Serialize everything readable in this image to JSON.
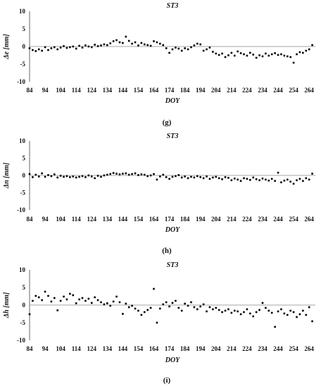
{
  "chart_data": [
    {
      "type": "scatter",
      "panel_tag": "(g)",
      "title": "ST3",
      "xlabel": "DOY",
      "ylabel": "Δe [mm]",
      "xlim": [
        84,
        268
      ],
      "ylim": [
        -10,
        10
      ],
      "xticks": [
        "84",
        "94",
        "104",
        "114",
        "124",
        "134",
        "144",
        "154",
        "164",
        "174",
        "184",
        "194",
        "204",
        "214",
        "224",
        "234",
        "244",
        "254",
        "264"
      ],
      "yticks": [
        "10",
        "5",
        "0",
        "-5",
        "-10"
      ],
      "grid": false,
      "marker_color": "#000000",
      "series": [
        {
          "x": [
            84,
            86,
            88,
            90,
            92,
            94,
            96,
            98,
            100,
            102,
            104,
            106,
            108,
            110,
            112,
            114,
            116,
            118,
            120,
            122,
            124,
            126,
            128,
            130,
            132,
            134,
            136,
            138,
            140,
            142,
            144,
            146,
            148,
            150,
            152,
            154,
            156,
            158,
            160,
            162,
            164,
            166,
            168,
            170,
            172,
            174,
            176,
            178,
            180,
            182,
            184,
            186,
            188,
            190,
            192,
            194,
            196,
            198,
            200,
            202,
            204,
            206,
            208,
            210,
            212,
            214,
            216,
            218,
            220,
            222,
            224,
            226,
            228,
            230,
            232,
            234,
            236,
            238,
            240,
            242,
            244,
            246,
            248,
            250,
            252,
            254,
            256,
            258,
            260,
            262,
            264,
            266
          ],
          "y": [
            -0.5,
            -1.0,
            -1.3,
            -0.8,
            -1.2,
            -0.2,
            -1.0,
            -0.5,
            -0.2,
            -0.8,
            -0.3,
            0.1,
            -0.4,
            -0.2,
            0.0,
            -0.6,
            0.2,
            -0.3,
            0.3,
            0.0,
            -0.2,
            0.5,
            0.1,
            0.3,
            0.6,
            0.4,
            0.9,
            1.5,
            1.8,
            1.2,
            1.0,
            2.8,
            1.6,
            0.8,
            1.2,
            0.3,
            1.0,
            0.6,
            0.4,
            0.2,
            1.5,
            1.2,
            0.8,
            0.4,
            -0.5,
            -1.8,
            -0.8,
            -0.3,
            -0.6,
            -1.2,
            -0.5,
            -0.8,
            -0.2,
            0.3,
            0.8,
            0.6,
            -1.2,
            -0.8,
            -0.3,
            -1.5,
            -2.0,
            -2.4,
            -2.0,
            -3.0,
            -2.5,
            -1.8,
            -2.6,
            -1.4,
            -1.9,
            -2.2,
            -2.6,
            -1.8,
            -2.3,
            -3.2,
            -2.5,
            -2.8,
            -2.0,
            -2.6,
            -2.2,
            -1.9,
            -2.4,
            -2.2,
            -2.6,
            -2.8,
            -3.0,
            -4.6,
            -2.2,
            -1.6,
            -1.8,
            -1.2,
            -0.8,
            0.4
          ]
        }
      ]
    },
    {
      "type": "scatter",
      "panel_tag": "(h)",
      "title": "ST3",
      "xlabel": "DOY",
      "ylabel": "Δn [mm]",
      "xlim": [
        84,
        268
      ],
      "ylim": [
        -10,
        10
      ],
      "xticks": [
        "84",
        "94",
        "104",
        "114",
        "124",
        "134",
        "144",
        "154",
        "164",
        "174",
        "184",
        "194",
        "204",
        "214",
        "224",
        "234",
        "244",
        "254",
        "264"
      ],
      "yticks": [
        "10",
        "5",
        "0",
        "-5",
        "-10"
      ],
      "grid": false,
      "marker_color": "#000000",
      "series": [
        {
          "x": [
            84,
            86,
            88,
            90,
            92,
            94,
            96,
            98,
            100,
            102,
            104,
            106,
            108,
            110,
            112,
            114,
            116,
            118,
            120,
            122,
            124,
            126,
            128,
            130,
            132,
            134,
            136,
            138,
            140,
            142,
            144,
            146,
            148,
            150,
            152,
            154,
            156,
            158,
            160,
            162,
            164,
            166,
            168,
            170,
            172,
            174,
            176,
            178,
            180,
            182,
            184,
            186,
            188,
            190,
            192,
            194,
            196,
            198,
            200,
            202,
            204,
            206,
            208,
            210,
            212,
            214,
            216,
            218,
            220,
            222,
            224,
            226,
            228,
            230,
            232,
            234,
            236,
            238,
            240,
            242,
            244,
            246,
            248,
            250,
            252,
            254,
            256,
            258,
            260,
            262,
            264,
            266
          ],
          "y": [
            0.4,
            -0.5,
            0.2,
            -0.3,
            0.6,
            -0.4,
            0.1,
            -0.2,
            0.3,
            -0.6,
            -0.1,
            -0.4,
            -0.2,
            -0.5,
            -0.3,
            -0.6,
            -0.4,
            -0.2,
            -0.5,
            0.0,
            -0.3,
            -0.8,
            -0.1,
            -0.4,
            0.0,
            0.2,
            0.4,
            0.7,
            0.5,
            0.3,
            0.5,
            0.6,
            0.2,
            0.4,
            0.6,
            0.1,
            0.3,
            0.2,
            -0.2,
            0.0,
            0.4,
            -1.2,
            -0.3,
            0.2,
            -0.5,
            -1.0,
            -0.4,
            -0.2,
            0.1,
            -0.6,
            -0.3,
            -0.8,
            -0.4,
            -0.6,
            -0.2,
            -0.5,
            -0.8,
            -0.3,
            -1.0,
            -0.6,
            -0.4,
            -0.8,
            -1.1,
            -0.5,
            -0.7,
            -1.4,
            -0.9,
            -1.2,
            -1.6,
            -0.8,
            -1.0,
            -1.3,
            -0.6,
            -1.1,
            -1.4,
            -0.9,
            -1.2,
            -1.5,
            -1.0,
            -1.6,
            0.8,
            -2.0,
            -1.5,
            -1.2,
            -1.8,
            -2.4,
            -1.4,
            -1.0,
            -1.6,
            -0.8,
            -1.2,
            0.5
          ]
        }
      ]
    },
    {
      "type": "scatter",
      "panel_tag": "(i)",
      "title": "ST3",
      "xlabel": "DOY",
      "ylabel": "Δh [mm]",
      "xlim": [
        84,
        268
      ],
      "ylim": [
        -10,
        10
      ],
      "xticks": [
        "84",
        "94",
        "104",
        "114",
        "124",
        "134",
        "144",
        "154",
        "164",
        "174",
        "184",
        "194",
        "204",
        "214",
        "224",
        "234",
        "244",
        "254",
        "264"
      ],
      "yticks": [
        "10",
        "5",
        "0",
        "-5",
        "-10"
      ],
      "grid": false,
      "marker_color": "#000000",
      "series": [
        {
          "x": [
            84,
            86,
            88,
            90,
            92,
            94,
            96,
            98,
            100,
            102,
            104,
            106,
            108,
            110,
            112,
            114,
            116,
            118,
            120,
            122,
            124,
            126,
            128,
            130,
            132,
            134,
            136,
            138,
            140,
            142,
            144,
            146,
            148,
            150,
            152,
            154,
            156,
            158,
            160,
            162,
            164,
            166,
            168,
            170,
            172,
            174,
            176,
            178,
            180,
            182,
            184,
            186,
            188,
            190,
            192,
            194,
            196,
            198,
            200,
            202,
            204,
            206,
            208,
            210,
            212,
            214,
            216,
            218,
            220,
            222,
            224,
            226,
            228,
            230,
            232,
            234,
            236,
            238,
            240,
            242,
            244,
            246,
            248,
            250,
            252,
            254,
            256,
            258,
            260,
            262,
            264,
            266
          ],
          "y": [
            -2.6,
            1.2,
            2.6,
            2.2,
            1.4,
            3.8,
            2.6,
            1.0,
            2.0,
            -1.5,
            1.2,
            2.4,
            1.6,
            3.2,
            2.8,
            0.5,
            1.6,
            2.0,
            1.2,
            1.8,
            0.6,
            2.2,
            1.4,
            0.8,
            0.2,
            0.5,
            -0.2,
            1.0,
            2.4,
            0.8,
            -2.5,
            0.4,
            -0.6,
            -0.2,
            -1.0,
            -1.6,
            -2.8,
            -2.0,
            -1.4,
            -0.8,
            4.6,
            -5.0,
            -1.0,
            0.2,
            0.8,
            -0.4,
            0.6,
            1.2,
            -0.8,
            -1.6,
            0.4,
            -0.2,
            0.8,
            -0.6,
            -1.2,
            -0.4,
            0.2,
            -1.8,
            -0.6,
            -1.2,
            -0.8,
            -1.4,
            -2.0,
            -1.6,
            -1.2,
            -2.2,
            -1.6,
            -1.8,
            -2.6,
            -2.0,
            -1.2,
            -2.4,
            -3.2,
            -2.0,
            -1.4,
            0.6,
            -0.8,
            -1.6,
            -2.2,
            -6.2,
            -1.8,
            -1.2,
            -2.4,
            -2.8,
            -1.6,
            -2.0,
            -3.4,
            -2.6,
            -1.6,
            -2.8,
            -0.6,
            -4.6
          ]
        }
      ]
    }
  ]
}
